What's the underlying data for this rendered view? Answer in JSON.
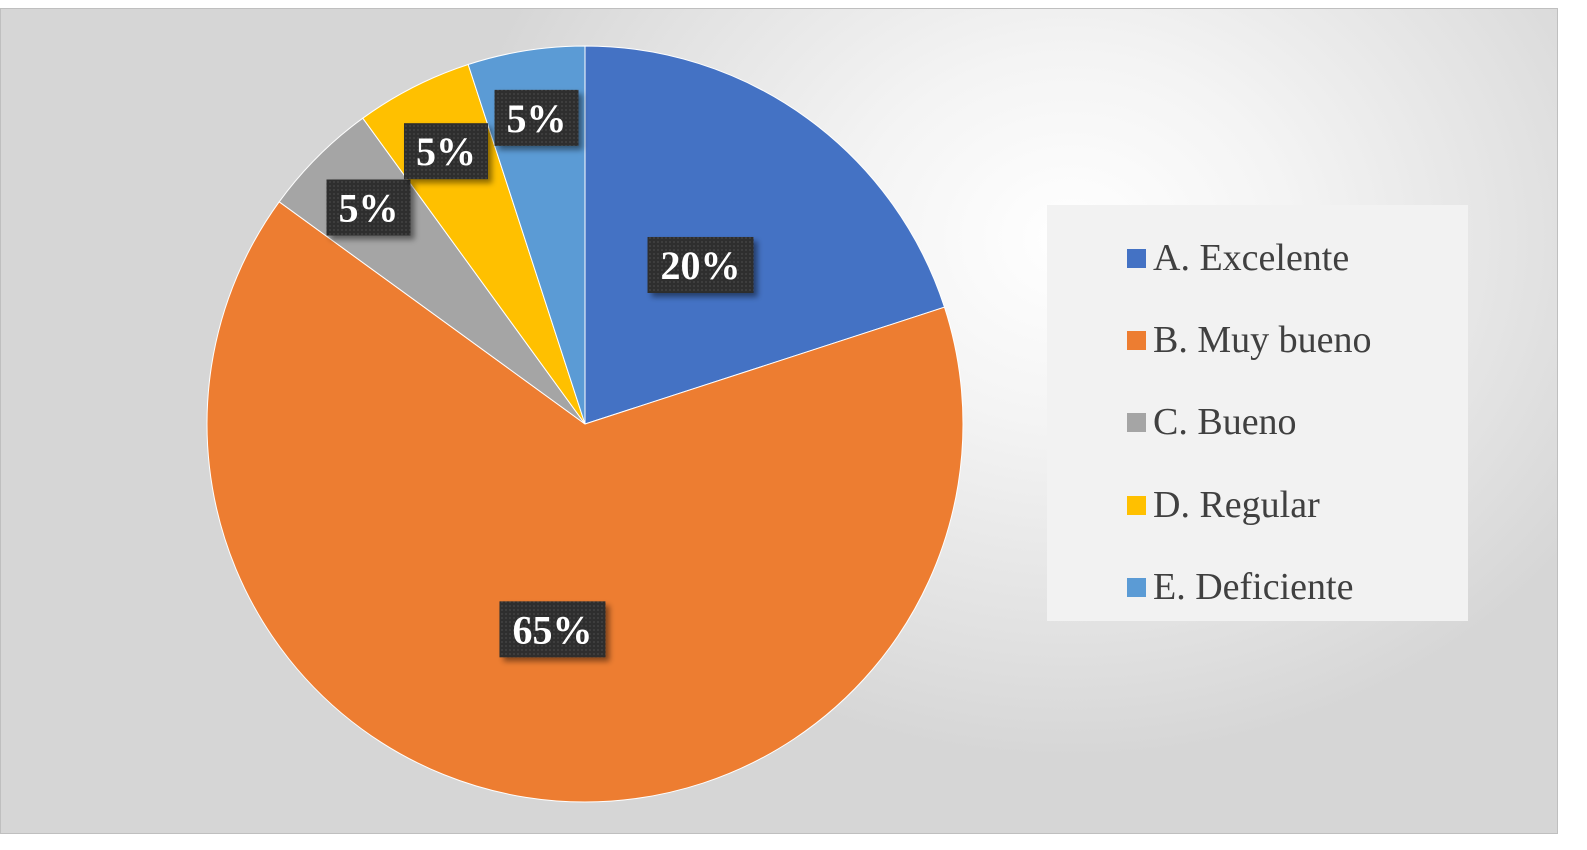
{
  "chart_data": {
    "type": "pie",
    "categories": [
      "A. Excelente",
      "B. Muy bueno",
      "C. Bueno",
      "D. Regular",
      "E. Deficiente"
    ],
    "values": [
      20,
      65,
      5,
      5,
      5
    ],
    "data_labels": [
      "20%",
      "65%",
      "5%",
      "5%",
      "5%"
    ],
    "colors": [
      "#4472C4",
      "#ED7D31",
      "#A5A5A5",
      "#FFC000",
      "#5B9BD5"
    ],
    "title": "",
    "legend_position": "right",
    "start_angle": "12 o'clock, clockwise"
  }
}
